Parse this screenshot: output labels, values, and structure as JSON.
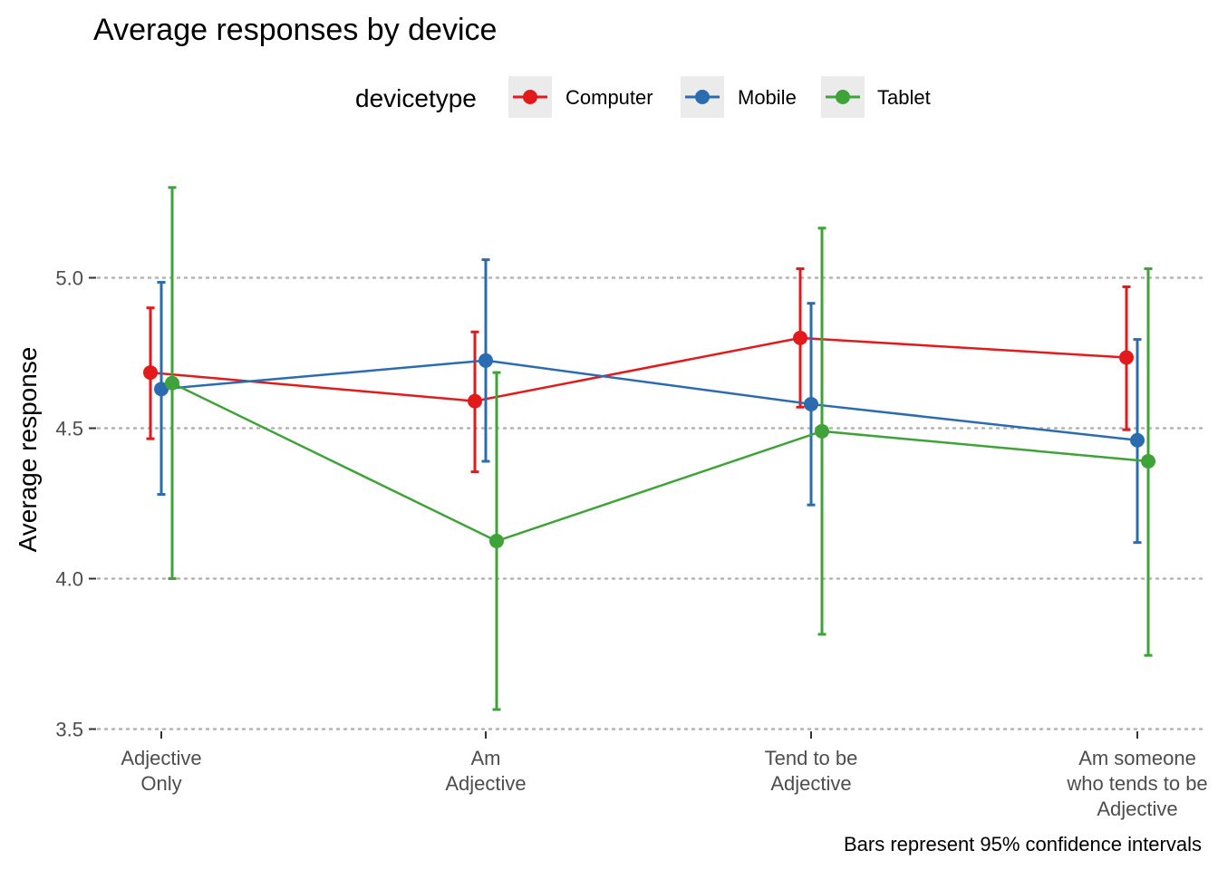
{
  "chart_data": {
    "type": "line",
    "title": "Average responses by device",
    "xlabel": "",
    "ylabel": "Average response",
    "caption": "Bars represent 95% confidence intervals",
    "legend": {
      "title": "devicetype",
      "position": "top"
    },
    "ylim": [
      3.5,
      5.3
    ],
    "yticks": [
      3.5,
      4.0,
      4.5,
      5.0
    ],
    "ytick_labels": [
      "3.5",
      "4.0",
      "4.5",
      "5.0"
    ],
    "grid": "horizontal dotted",
    "error_bars": "95% confidence intervals",
    "categories": [
      [
        "Adjective",
        "Only"
      ],
      [
        "Am",
        "Adjective"
      ],
      [
        "Tend to be",
        "Adjective"
      ],
      [
        "Am someone",
        "who tends to be",
        "Adjective"
      ]
    ],
    "series": [
      {
        "name": "Computer",
        "color": "#e31a1c",
        "values": [
          4.685,
          4.59,
          4.8,
          4.735
        ],
        "ci_low": [
          4.465,
          4.355,
          4.57,
          4.495
        ],
        "ci_high": [
          4.9,
          4.82,
          5.03,
          4.97
        ]
      },
      {
        "name": "Mobile",
        "color": "#2b6cb0",
        "values": [
          4.63,
          4.725,
          4.58,
          4.46
        ],
        "ci_low": [
          4.28,
          4.39,
          4.245,
          4.12
        ],
        "ci_high": [
          4.985,
          5.06,
          4.915,
          4.795
        ]
      },
      {
        "name": "Tablet",
        "color": "#3fa33a",
        "values": [
          4.65,
          4.125,
          4.49,
          4.39
        ],
        "ci_low": [
          4.0,
          3.565,
          3.815,
          3.745
        ],
        "ci_high": [
          5.3,
          4.685,
          5.165,
          5.03
        ]
      }
    ]
  }
}
